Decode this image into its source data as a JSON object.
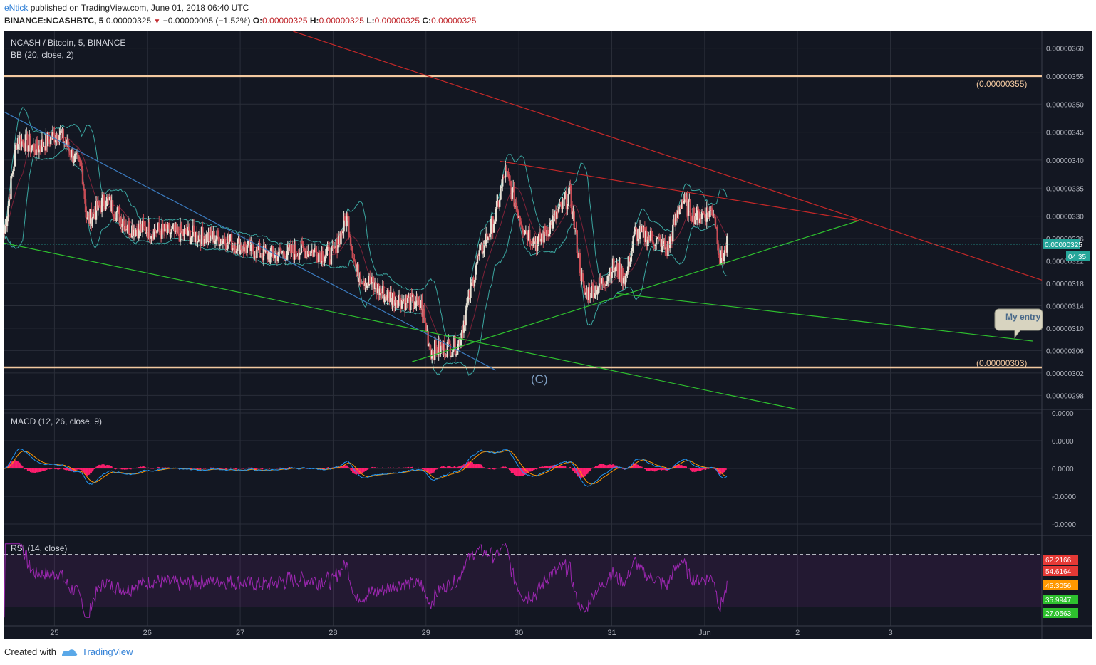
{
  "header": {
    "author": "eNtick",
    "published_text": "published on TradingView.com, June 01, 2018 06:40 UTC",
    "symbol": "BINANCE:NCASHBTC, 5",
    "last_price": "0.00000325",
    "change": "−0.00000005 (−1.52%)",
    "ohlc": [
      {
        "k": "O:",
        "v": "0.00000325"
      },
      {
        "k": "H:",
        "v": "0.00000325"
      },
      {
        "k": "L:",
        "v": "0.00000325"
      },
      {
        "k": "C:",
        "v": "0.00000325"
      }
    ]
  },
  "legend": {
    "title": "NCASH / Bitcoin, 5, BINANCE",
    "bb": "BB (20, close, 2)",
    "macd": "MACD (12, 26, close, 9)",
    "rsi": "RSI (14, close)"
  },
  "annotations": {
    "wave_label": "(C)",
    "level_upper": "(0.00000355)",
    "level_lower": "(0.00000303)",
    "callout": "My entry",
    "price_tag": "0.00000325",
    "countdown": "04:35"
  },
  "footer": {
    "created_with": "Created with",
    "brand": "TradingView"
  },
  "colors": {
    "background": "#131722",
    "grid": "#2a2e39",
    "candle_up": "#e8e2d6",
    "candle_down": "#c94c55",
    "bb_line": "#3ba6a0",
    "bb_center": "#c62a47",
    "trend_blue": "#3b7bbf",
    "trend_red": "#c62828",
    "trend_green": "#2ec02e",
    "level_line": "#f3c9a0",
    "macd_line": "#2196f3",
    "signal_line": "#ff9800",
    "histogram": "#ff1e6e",
    "rsi_line": "#9c27b0",
    "last_price": "#26a69a"
  },
  "chart_data": [
    {
      "type": "candlestick",
      "title": "NCASH / Bitcoin, 5, BINANCE",
      "x_ticks": [
        "25",
        "26",
        "27",
        "28",
        "29",
        "30",
        "31",
        "Jun",
        "2",
        "3"
      ],
      "y_ticks": [
        "0.00000360",
        "0.00000355",
        "0.00000350",
        "0.00000345",
        "0.00000340",
        "0.00000335",
        "0.00000330",
        "0.00000326",
        "0.00000322",
        "0.00000318",
        "0.00000314",
        "0.00000310",
        "0.00000306",
        "0.00000302",
        "0.00000298"
      ],
      "ylim": [
        2.955e-06,
        3.63e-06
      ],
      "bars_per_day": 288,
      "days_start": 24.46,
      "days_end": 35.63,
      "price_path": [
        {
          "day": 24.46,
          "price": 3.27e-06
        },
        {
          "day": 24.6,
          "price": 3.44e-06
        },
        {
          "day": 24.8,
          "price": 3.42e-06
        },
        {
          "day": 25.05,
          "price": 3.45e-06
        },
        {
          "day": 25.3,
          "price": 3.38e-06
        },
        {
          "day": 25.35,
          "price": 3.29e-06
        },
        {
          "day": 25.55,
          "price": 3.33e-06
        },
        {
          "day": 25.8,
          "price": 3.28e-06
        },
        {
          "day": 26.3,
          "price": 3.27e-06
        },
        {
          "day": 26.8,
          "price": 3.26e-06
        },
        {
          "day": 27.3,
          "price": 3.23e-06
        },
        {
          "day": 27.7,
          "price": 3.24e-06
        },
        {
          "day": 28.0,
          "price": 3.23e-06
        },
        {
          "day": 28.15,
          "price": 3.3e-06
        },
        {
          "day": 28.25,
          "price": 3.2e-06
        },
        {
          "day": 28.55,
          "price": 3.16e-06
        },
        {
          "day": 28.95,
          "price": 3.14e-06
        },
        {
          "day": 29.05,
          "price": 3.06e-06
        },
        {
          "day": 29.35,
          "price": 3.07e-06
        },
        {
          "day": 29.55,
          "price": 3.22e-06
        },
        {
          "day": 29.75,
          "price": 3.3e-06
        },
        {
          "day": 29.85,
          "price": 3.38e-06
        },
        {
          "day": 30.05,
          "price": 3.28e-06
        },
        {
          "day": 30.2,
          "price": 3.25e-06
        },
        {
          "day": 30.4,
          "price": 3.3e-06
        },
        {
          "day": 30.55,
          "price": 3.34e-06
        },
        {
          "day": 30.7,
          "price": 3.16e-06
        },
        {
          "day": 30.9,
          "price": 3.18e-06
        },
        {
          "day": 31.0,
          "price": 3.21e-06
        },
        {
          "day": 31.15,
          "price": 3.19e-06
        },
        {
          "day": 31.25,
          "price": 3.27e-06
        },
        {
          "day": 31.45,
          "price": 3.26e-06
        },
        {
          "day": 31.6,
          "price": 3.24e-06
        },
        {
          "day": 31.75,
          "price": 3.33e-06
        },
        {
          "day": 31.9,
          "price": 3.3e-06
        },
        {
          "day": 32.1,
          "price": 3.31e-06
        },
        {
          "day": 32.17,
          "price": 3.22e-06
        },
        {
          "day": 32.25,
          "price": 3.25e-06
        }
      ],
      "horizontal_levels": [
        3.55e-06,
        3.03e-06
      ],
      "trendlines": [
        {
          "color": "trend_blue",
          "from": [
            24.46,
            3.486e-06
          ],
          "to": [
            29.75,
            3.025e-06
          ]
        },
        {
          "color": "trend_red",
          "from": [
            27.57,
            3.63e-06
          ],
          "to": [
            35.63,
            3.186e-06
          ]
        },
        {
          "color": "trend_red",
          "from": [
            29.8,
            3.398e-06
          ],
          "to": [
            33.66,
            3.292e-06
          ]
        },
        {
          "color": "trend_green",
          "from": [
            24.46,
            3.252e-06
          ],
          "to": [
            33.0,
            2.955e-06
          ]
        },
        {
          "color": "trend_green",
          "from": [
            28.85,
            3.04e-06
          ],
          "to": [
            33.66,
            3.292e-06
          ]
        },
        {
          "color": "trend_green",
          "from": [
            31.05,
            3.162e-06
          ],
          "to": [
            35.53,
            3.077e-06
          ]
        }
      ],
      "last_price": 3.25e-06
    },
    {
      "type": "line",
      "title": "MACD (12, 26, close, 9)",
      "y_ticks": [
        "0.0000",
        "0.0000",
        "0.0000",
        "-0.0000",
        "-0.0000"
      ],
      "series": [
        {
          "name": "MACD",
          "color": "macd_line"
        },
        {
          "name": "Signal",
          "color": "signal_line"
        },
        {
          "name": "Histogram",
          "color": "histogram"
        }
      ]
    },
    {
      "type": "line",
      "title": "RSI (14, close)",
      "y_ticks": [
        "62.2166",
        "54.6164",
        "45.3056",
        "35.9947",
        "27.0563"
      ],
      "ylim": [
        20,
        80
      ],
      "bands": [
        70,
        30
      ],
      "last_value": 45.3056
    }
  ]
}
